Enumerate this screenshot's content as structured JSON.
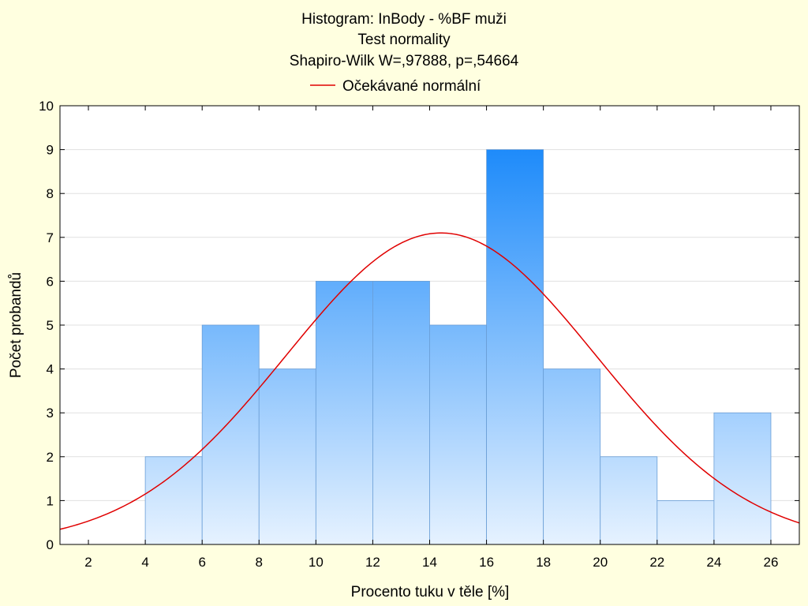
{
  "chart_data": {
    "type": "bar",
    "title": "Histogram: InBody - %BF muži",
    "subtitle_lines": [
      "Test normality",
      "Shapiro-Wilk W=,97888, p=,54664"
    ],
    "xlabel": "Procento tuku v těle [%]",
    "ylabel": "Počet probandů",
    "bins": [
      {
        "from": 4,
        "to": 6,
        "count": 2
      },
      {
        "from": 6,
        "to": 8,
        "count": 5
      },
      {
        "from": 8,
        "to": 10,
        "count": 4
      },
      {
        "from": 10,
        "to": 12,
        "count": 6
      },
      {
        "from": 12,
        "to": 14,
        "count": 6
      },
      {
        "from": 14,
        "to": 16,
        "count": 5
      },
      {
        "from": 16,
        "to": 18,
        "count": 9
      },
      {
        "from": 18,
        "to": 20,
        "count": 4
      },
      {
        "from": 20,
        "to": 22,
        "count": 2
      },
      {
        "from": 22,
        "to": 24,
        "count": 1
      },
      {
        "from": 24,
        "to": 26,
        "count": 3
      }
    ],
    "xlim": [
      1,
      27
    ],
    "ylim": [
      0,
      10
    ],
    "xticks": [
      2,
      4,
      6,
      8,
      10,
      12,
      14,
      16,
      18,
      20,
      22,
      24,
      26
    ],
    "yticks": [
      0,
      1,
      2,
      3,
      4,
      5,
      6,
      7,
      8,
      9,
      10
    ],
    "normal_curve": {
      "name": "Očekávané normální",
      "mean": 14.4,
      "peak": 7.1,
      "sd": 5.45,
      "color": "#E00000"
    },
    "grid": true,
    "legend_position": "top",
    "colors": {
      "background": "#FFFFE0",
      "plot_background": "#FFFFFF",
      "bar_top": "#1E8BFA",
      "bar_bottom": "#E6F2FF",
      "bar_edge": "#6A9ED6",
      "grid": "#E0E0E0",
      "axis": "#000000"
    }
  }
}
